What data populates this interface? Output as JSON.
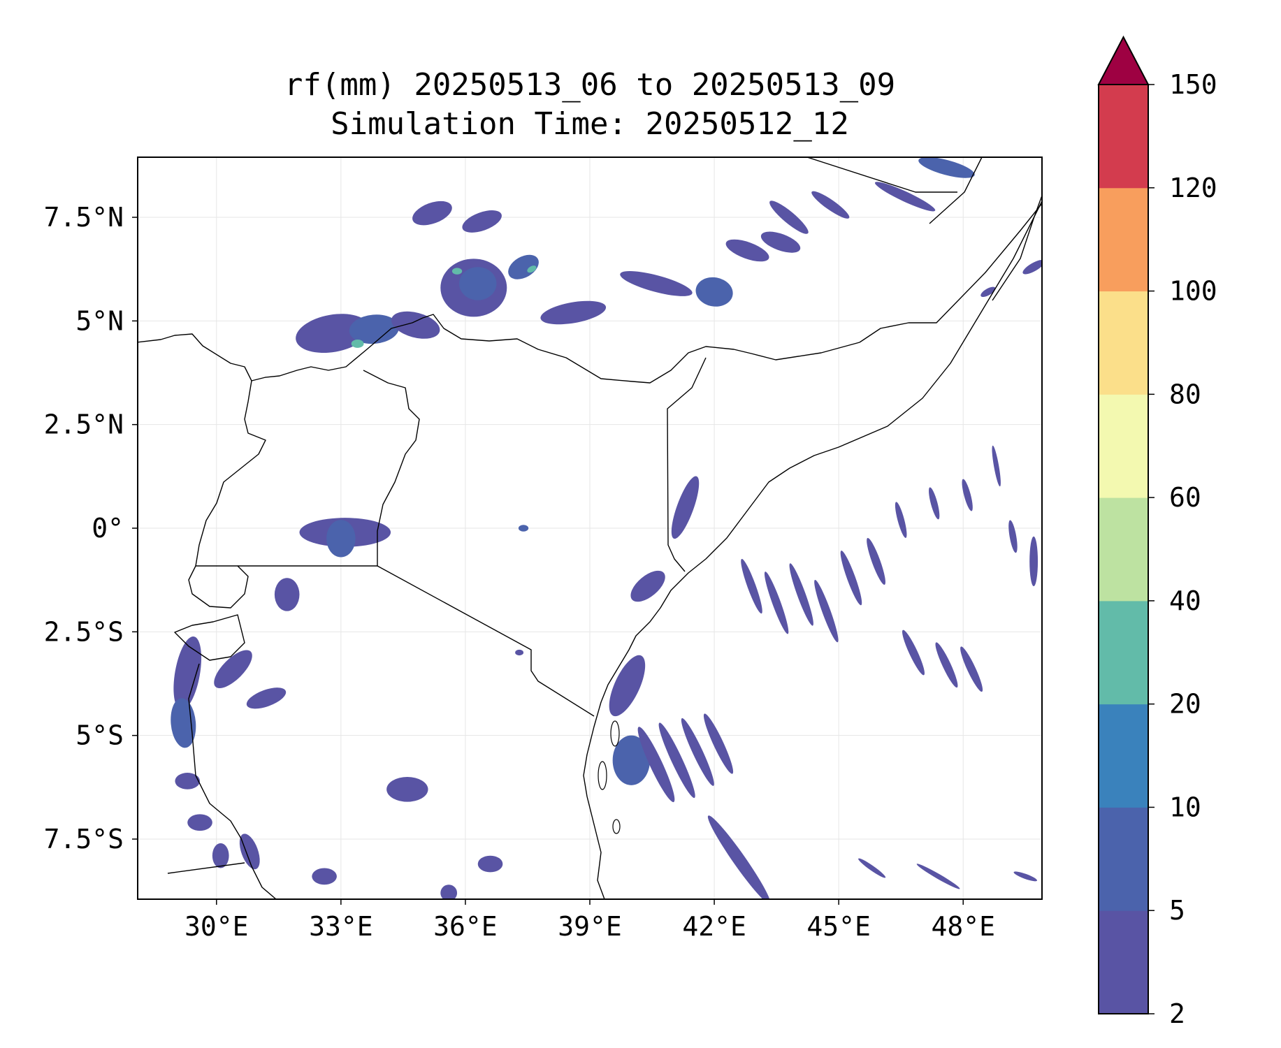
{
  "title": "rf(mm) 20250513_06 to 20250513_09",
  "subtitle": "Simulation Time: 20250512_12",
  "map": {
    "extent": {
      "lon_min": 28.1,
      "lon_max": 49.9,
      "lat_min": -8.95,
      "lat_max": 8.95
    },
    "x_ticks": [
      {
        "value": 30,
        "label": "30°E"
      },
      {
        "value": 33,
        "label": "33°E"
      },
      {
        "value": 36,
        "label": "36°E"
      },
      {
        "value": 39,
        "label": "39°E"
      },
      {
        "value": 42,
        "label": "42°E"
      },
      {
        "value": 45,
        "label": "45°E"
      },
      {
        "value": 48,
        "label": "48°E"
      }
    ],
    "y_ticks": [
      {
        "value": 7.5,
        "label": "7.5°N"
      },
      {
        "value": 5,
        "label": "5°N"
      },
      {
        "value": 2.5,
        "label": "2.5°N"
      },
      {
        "value": 0,
        "label": "0°"
      },
      {
        "value": -2.5,
        "label": "2.5°S"
      },
      {
        "value": -5,
        "label": "5°S"
      },
      {
        "value": -7.5,
        "label": "7.5°S"
      }
    ],
    "gridlines": true
  },
  "colorbar": {
    "levels": [
      2,
      5,
      10,
      20,
      40,
      60,
      80,
      100,
      120,
      150
    ],
    "colors": [
      "#5954a4",
      "#4b63ac",
      "#3a82bc",
      "#62bba9",
      "#bde2a1",
      "#f3f9b0",
      "#fbdf8a",
      "#f89e5d",
      "#d33c4e"
    ],
    "extend_color": "#9e0142",
    "extend": "max"
  },
  "chart_data": {
    "type": "heatmap",
    "variable": "rf(mm)",
    "levels": [
      2,
      5,
      10,
      20,
      40,
      60,
      80,
      100,
      120,
      150
    ],
    "rain_cells": [
      {
        "lon": 32.8,
        "lat": 4.7,
        "rx": 0.9,
        "ry": 0.45,
        "rot": -10,
        "level": 0
      },
      {
        "lon": 33.8,
        "lat": 4.8,
        "rx": 0.6,
        "ry": 0.35,
        "rot": -5,
        "level": 1
      },
      {
        "lon": 33.4,
        "lat": 4.45,
        "rx": 0.15,
        "ry": 0.1,
        "rot": 0,
        "level": 3
      },
      {
        "lon": 34.8,
        "lat": 4.9,
        "rx": 0.6,
        "ry": 0.3,
        "rot": 15,
        "level": 0
      },
      {
        "lon": 36.2,
        "lat": 5.8,
        "rx": 0.8,
        "ry": 0.7,
        "rot": 0,
        "level": 0
      },
      {
        "lon": 36.3,
        "lat": 5.9,
        "rx": 0.45,
        "ry": 0.4,
        "rot": 0,
        "level": 1
      },
      {
        "lon": 35.8,
        "lat": 6.2,
        "rx": 0.12,
        "ry": 0.08,
        "rot": 0,
        "level": 3
      },
      {
        "lon": 37.4,
        "lat": 6.3,
        "rx": 0.4,
        "ry": 0.25,
        "rot": -30,
        "level": 1
      },
      {
        "lon": 37.6,
        "lat": 6.25,
        "rx": 0.12,
        "ry": 0.07,
        "rot": -30,
        "level": 3
      },
      {
        "lon": 38.6,
        "lat": 5.2,
        "rx": 0.8,
        "ry": 0.25,
        "rot": -10,
        "level": 0
      },
      {
        "lon": 35.2,
        "lat": 7.6,
        "rx": 0.5,
        "ry": 0.25,
        "rot": -20,
        "level": 0
      },
      {
        "lon": 36.4,
        "lat": 7.4,
        "rx": 0.5,
        "ry": 0.22,
        "rot": -20,
        "level": 0
      },
      {
        "lon": 40.6,
        "lat": 5.9,
        "rx": 0.9,
        "ry": 0.2,
        "rot": 15,
        "level": 0
      },
      {
        "lon": 42.0,
        "lat": 5.7,
        "rx": 0.45,
        "ry": 0.35,
        "rot": 10,
        "level": 1
      },
      {
        "lon": 42.8,
        "lat": 6.7,
        "rx": 0.55,
        "ry": 0.2,
        "rot": 20,
        "level": 0
      },
      {
        "lon": 43.6,
        "lat": 6.9,
        "rx": 0.5,
        "ry": 0.2,
        "rot": 20,
        "level": 0
      },
      {
        "lon": 43.8,
        "lat": 7.5,
        "rx": 0.6,
        "ry": 0.14,
        "rot": 40,
        "level": 0
      },
      {
        "lon": 44.8,
        "lat": 7.8,
        "rx": 0.55,
        "ry": 0.12,
        "rot": 35,
        "level": 0
      },
      {
        "lon": 46.6,
        "lat": 8.0,
        "rx": 0.8,
        "ry": 0.12,
        "rot": 25,
        "level": 0
      },
      {
        "lon": 47.6,
        "lat": 8.7,
        "rx": 0.7,
        "ry": 0.18,
        "rot": 15,
        "level": 1
      },
      {
        "lon": 33.1,
        "lat": -0.1,
        "rx": 1.1,
        "ry": 0.35,
        "rot": 0,
        "level": 0
      },
      {
        "lon": 33.0,
        "lat": -0.25,
        "rx": 0.35,
        "ry": 0.45,
        "rot": 0,
        "level": 1
      },
      {
        "lon": 31.7,
        "lat": -1.6,
        "rx": 0.3,
        "ry": 0.4,
        "rot": 0,
        "level": 0
      },
      {
        "lon": 29.3,
        "lat": -3.5,
        "rx": 0.3,
        "ry": 0.9,
        "rot": 10,
        "level": 0
      },
      {
        "lon": 29.2,
        "lat": -4.7,
        "rx": 0.3,
        "ry": 0.6,
        "rot": -5,
        "level": 1
      },
      {
        "lon": 30.4,
        "lat": -3.4,
        "rx": 0.6,
        "ry": 0.25,
        "rot": -45,
        "level": 0
      },
      {
        "lon": 31.2,
        "lat": -4.1,
        "rx": 0.5,
        "ry": 0.2,
        "rot": -20,
        "level": 0
      },
      {
        "lon": 29.3,
        "lat": -6.1,
        "rx": 0.3,
        "ry": 0.2,
        "rot": 0,
        "level": 0
      },
      {
        "lon": 29.6,
        "lat": -7.1,
        "rx": 0.3,
        "ry": 0.2,
        "rot": 0,
        "level": 0
      },
      {
        "lon": 30.1,
        "lat": -7.9,
        "rx": 0.2,
        "ry": 0.3,
        "rot": 0,
        "level": 0
      },
      {
        "lon": 30.8,
        "lat": -7.8,
        "rx": 0.2,
        "ry": 0.45,
        "rot": -20,
        "level": 0
      },
      {
        "lon": 34.6,
        "lat": -6.3,
        "rx": 0.5,
        "ry": 0.3,
        "rot": 0,
        "level": 0
      },
      {
        "lon": 36.6,
        "lat": -8.1,
        "rx": 0.3,
        "ry": 0.2,
        "rot": 0,
        "level": 0
      },
      {
        "lon": 35.6,
        "lat": -8.8,
        "rx": 0.2,
        "ry": 0.2,
        "rot": 0,
        "level": 0
      },
      {
        "lon": 32.6,
        "lat": -8.4,
        "rx": 0.3,
        "ry": 0.2,
        "rot": 0,
        "level": 0
      },
      {
        "lon": 41.3,
        "lat": 0.5,
        "rx": 0.2,
        "ry": 0.8,
        "rot": 20,
        "level": 0
      },
      {
        "lon": 40.4,
        "lat": -1.4,
        "rx": 0.5,
        "ry": 0.25,
        "rot": -40,
        "level": 0
      },
      {
        "lon": 39.9,
        "lat": -3.8,
        "rx": 0.3,
        "ry": 0.8,
        "rot": 25,
        "level": 0
      },
      {
        "lon": 40.0,
        "lat": -5.6,
        "rx": 0.45,
        "ry": 0.6,
        "rot": 0,
        "level": 1
      },
      {
        "lon": 40.6,
        "lat": -5.7,
        "rx": 0.15,
        "ry": 1.0,
        "rot": -25,
        "level": 0
      },
      {
        "lon": 41.1,
        "lat": -5.6,
        "rx": 0.13,
        "ry": 1.0,
        "rot": -25,
        "level": 0
      },
      {
        "lon": 41.6,
        "lat": -5.4,
        "rx": 0.12,
        "ry": 0.9,
        "rot": -25,
        "level": 0
      },
      {
        "lon": 42.1,
        "lat": -5.2,
        "rx": 0.12,
        "ry": 0.8,
        "rot": -25,
        "level": 0
      },
      {
        "lon": 42.6,
        "lat": -8.0,
        "rx": 0.15,
        "ry": 1.3,
        "rot": -35,
        "level": 0
      },
      {
        "lon": 42.9,
        "lat": -1.4,
        "rx": 0.1,
        "ry": 0.7,
        "rot": -20,
        "level": 0
      },
      {
        "lon": 43.5,
        "lat": -1.8,
        "rx": 0.1,
        "ry": 0.8,
        "rot": -20,
        "level": 0
      },
      {
        "lon": 44.1,
        "lat": -1.6,
        "rx": 0.1,
        "ry": 0.8,
        "rot": -20,
        "level": 0
      },
      {
        "lon": 44.7,
        "lat": -2.0,
        "rx": 0.1,
        "ry": 0.8,
        "rot": -20,
        "level": 0
      },
      {
        "lon": 45.3,
        "lat": -1.2,
        "rx": 0.1,
        "ry": 0.7,
        "rot": -20,
        "level": 0
      },
      {
        "lon": 45.9,
        "lat": -0.8,
        "rx": 0.1,
        "ry": 0.6,
        "rot": -20,
        "level": 0
      },
      {
        "lon": 46.8,
        "lat": -3.0,
        "rx": 0.1,
        "ry": 0.6,
        "rot": -25,
        "level": 0
      },
      {
        "lon": 47.6,
        "lat": -3.3,
        "rx": 0.1,
        "ry": 0.6,
        "rot": -25,
        "level": 0
      },
      {
        "lon": 48.2,
        "lat": -3.4,
        "rx": 0.1,
        "ry": 0.6,
        "rot": -25,
        "level": 0
      },
      {
        "lon": 46.5,
        "lat": 0.2,
        "rx": 0.08,
        "ry": 0.45,
        "rot": -15,
        "level": 0
      },
      {
        "lon": 47.3,
        "lat": 0.6,
        "rx": 0.08,
        "ry": 0.4,
        "rot": -15,
        "level": 0
      },
      {
        "lon": 48.1,
        "lat": 0.8,
        "rx": 0.08,
        "ry": 0.4,
        "rot": -15,
        "level": 0
      },
      {
        "lon": 48.8,
        "lat": 1.5,
        "rx": 0.06,
        "ry": 0.5,
        "rot": -10,
        "level": 0
      },
      {
        "lon": 49.7,
        "lat": -0.8,
        "rx": 0.1,
        "ry": 0.6,
        "rot": 0,
        "level": 0
      },
      {
        "lon": 49.2,
        "lat": -0.2,
        "rx": 0.08,
        "ry": 0.4,
        "rot": -10,
        "level": 0
      },
      {
        "lon": 49.7,
        "lat": 6.3,
        "rx": 0.3,
        "ry": 0.1,
        "rot": -30,
        "level": 0
      },
      {
        "lon": 48.6,
        "lat": 5.7,
        "rx": 0.2,
        "ry": 0.08,
        "rot": -30,
        "level": 0
      },
      {
        "lon": 45.8,
        "lat": -8.2,
        "rx": 0.4,
        "ry": 0.06,
        "rot": 35,
        "level": 0
      },
      {
        "lon": 47.4,
        "lat": -8.4,
        "rx": 0.6,
        "ry": 0.06,
        "rot": 30,
        "level": 0
      },
      {
        "lon": 49.5,
        "lat": -8.4,
        "rx": 0.3,
        "ry": 0.06,
        "rot": 20,
        "level": 0
      },
      {
        "lon": 37.4,
        "lat": 0.0,
        "rx": 0.12,
        "ry": 0.08,
        "rot": 0,
        "level": 1
      },
      {
        "lon": 37.3,
        "lat": -3.0,
        "rx": 0.1,
        "ry": 0.07,
        "rot": 0,
        "level": 0
      }
    ]
  }
}
